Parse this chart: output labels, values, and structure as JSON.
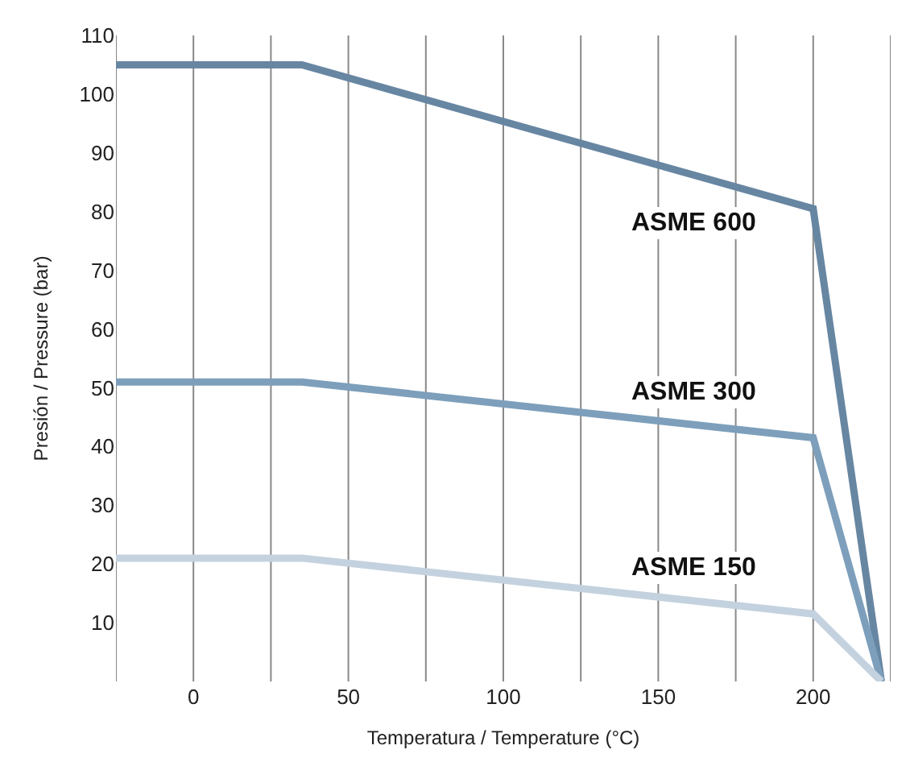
{
  "chart_data": {
    "type": "line",
    "xlabel": "Temperatura / Temperature (°C)",
    "ylabel": "Presión / Pressure (bar)",
    "xlim": [
      -25,
      225
    ],
    "ylim": [
      0,
      110
    ],
    "xticks": [
      {
        "value": -25,
        "label": null
      },
      0,
      {
        "value": 25,
        "label": null
      },
      50,
      {
        "value": 75,
        "label": null
      },
      100,
      {
        "value": 125,
        "label": null
      },
      150,
      {
        "value": 175,
        "label": null
      },
      200,
      {
        "value": 225,
        "label": null
      }
    ],
    "yticks": [
      10,
      20,
      30,
      40,
      50,
      60,
      70,
      80,
      90,
      100,
      110
    ],
    "grid": "x",
    "legend": false,
    "marker": "none",
    "line_style": "solid",
    "series": [
      {
        "name": "ASME 600",
        "color": "#6786a2",
        "x": [
          -25,
          35,
          200,
          222
        ],
        "values": [
          105,
          105,
          80.5,
          0
        ]
      },
      {
        "name": "ASME 300",
        "color": "#7d9fbb",
        "x": [
          -25,
          35,
          200,
          222
        ],
        "values": [
          51,
          51,
          41.5,
          0
        ]
      },
      {
        "name": "ASME 150",
        "color": "#c3d2de",
        "x": [
          -25,
          35,
          200,
          222
        ],
        "values": [
          21,
          21,
          11.5,
          0
        ]
      }
    ]
  }
}
